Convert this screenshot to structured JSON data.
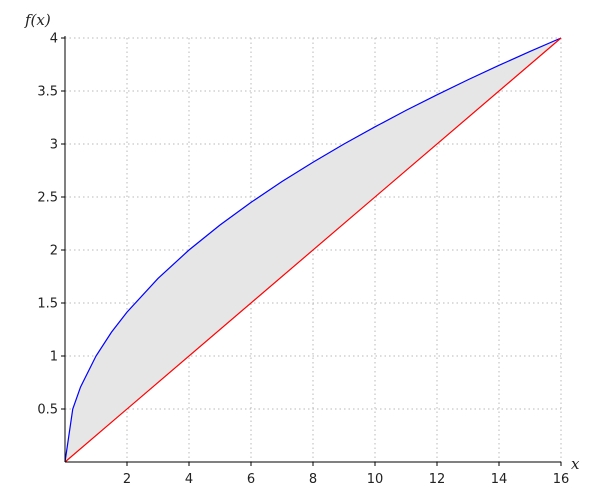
{
  "chart_data": {
    "type": "line",
    "xlabel": "x",
    "ylabel": "f(x)",
    "xlim": [
      0,
      16
    ],
    "ylim": [
      0,
      4
    ],
    "x_ticks": [
      2,
      4,
      6,
      8,
      10,
      12,
      14,
      16
    ],
    "x_tick_labels": [
      "2",
      "4",
      "6",
      "8",
      "10",
      "12",
      "14",
      "16"
    ],
    "y_ticks": [
      0.5,
      1,
      1.5,
      2,
      2.5,
      3,
      3.5,
      4
    ],
    "y_tick_labels": [
      "0.5",
      "1",
      "1.5",
      "2",
      "2.5",
      "3",
      "3.5",
      "4"
    ],
    "grid": true,
    "series": [
      {
        "color": "#0000ff",
        "x": [
          0,
          0.25,
          0.5,
          1,
          1.5,
          2,
          3,
          4,
          5,
          6,
          7,
          8,
          9,
          10,
          11,
          12,
          13,
          14,
          15,
          16
        ],
        "y": [
          0,
          0.5,
          0.707,
          1,
          1.225,
          1.414,
          1.732,
          2,
          2.236,
          2.449,
          2.646,
          2.828,
          3,
          3.162,
          3.317,
          3.464,
          3.606,
          3.742,
          3.873,
          4
        ]
      },
      {
        "color": "#ff0000",
        "x": [
          0,
          16
        ],
        "y": [
          0,
          4
        ]
      }
    ],
    "shaded_region": {
      "between_series": [
        0,
        1
      ],
      "x_range": [
        0,
        16
      ],
      "color": "#e6e6e6"
    }
  }
}
